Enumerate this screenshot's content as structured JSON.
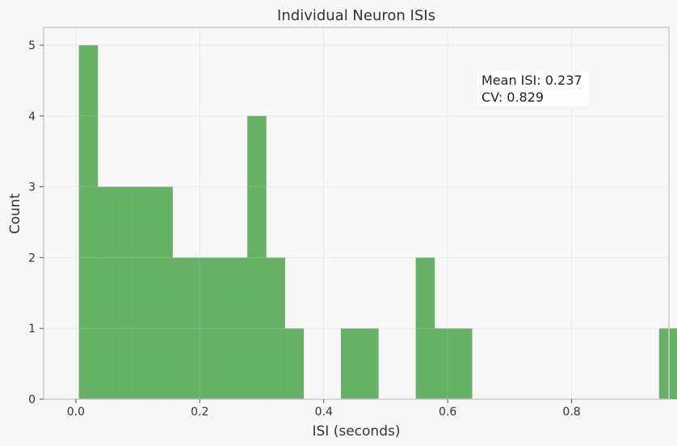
{
  "chart_data": {
    "type": "bar",
    "title": "Individual Neuron ISIs",
    "xlabel": "ISI (seconds)",
    "ylabel": "Count",
    "xlim": [
      -0.052,
      0.957
    ],
    "ylim": [
      0,
      5.25
    ],
    "xticks": [
      {
        "value": 0.0,
        "label": "0.0"
      },
      {
        "value": 0.2,
        "label": "0.2"
      },
      {
        "value": 0.4,
        "label": "0.4"
      },
      {
        "value": 0.6,
        "label": "0.6"
      },
      {
        "value": 0.8,
        "label": "0.8"
      }
    ],
    "yticks": [
      {
        "value": 0,
        "label": "0"
      },
      {
        "value": 1,
        "label": "1"
      },
      {
        "value": 2,
        "label": "2"
      },
      {
        "value": 3,
        "label": "3"
      },
      {
        "value": 4,
        "label": "4"
      },
      {
        "value": 5,
        "label": "5"
      }
    ],
    "grid": true,
    "bar_color": "#5aab5a",
    "bins": {
      "start": 0.0049,
      "width": 0.0302,
      "counts": [
        5,
        3,
        3,
        3,
        3,
        2,
        2,
        2,
        2,
        4,
        2,
        1,
        0,
        0,
        1,
        1,
        0,
        0,
        2,
        1,
        1,
        0,
        0,
        0,
        0,
        0,
        0,
        0,
        0,
        0,
        0,
        1
      ]
    },
    "annotation": {
      "lines": [
        "Mean ISI: 0.237",
        "CV: 0.829"
      ],
      "position": "top-right"
    }
  }
}
